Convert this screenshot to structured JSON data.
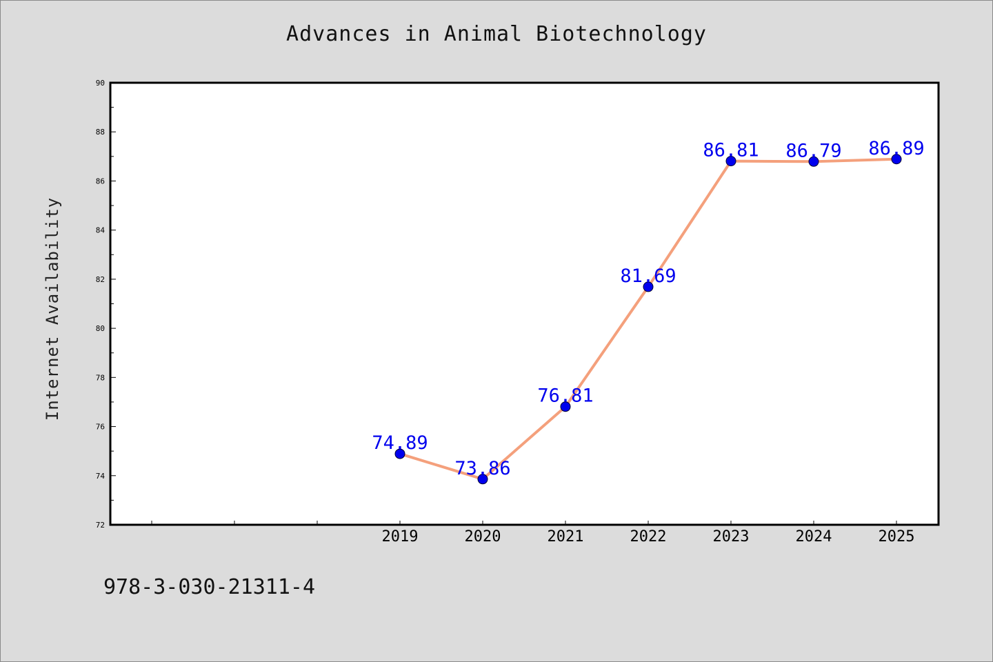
{
  "chart_data": {
    "type": "line",
    "title": "Advances in Animal Biotechnology",
    "xlabel": "",
    "ylabel": "Internet Availability",
    "categories": [
      "",
      "",
      "",
      "2019",
      "2020",
      "2021",
      "2022",
      "2023",
      "2024",
      "2025"
    ],
    "series": [
      {
        "values": [
          null,
          null,
          null,
          74.89,
          73.86,
          76.81,
          81.69,
          86.81,
          86.79,
          86.89
        ],
        "labels": [
          "",
          "",
          "",
          "74.89",
          "73.86",
          "76.81",
          "81.69",
          "86.81",
          "86.79",
          "86.89"
        ],
        "line_color": "#f4a07c",
        "marker_color": "#0000ee",
        "label_color": "#0000ee"
      }
    ],
    "ylim": [
      72,
      90
    ],
    "yticks": [
      "72",
      "74",
      "76",
      "78",
      "80",
      "82",
      "84",
      "86",
      "88",
      "90"
    ],
    "grid": false,
    "legend": "none"
  },
  "footer": {
    "isbn": "978-3-030-21311-4"
  }
}
